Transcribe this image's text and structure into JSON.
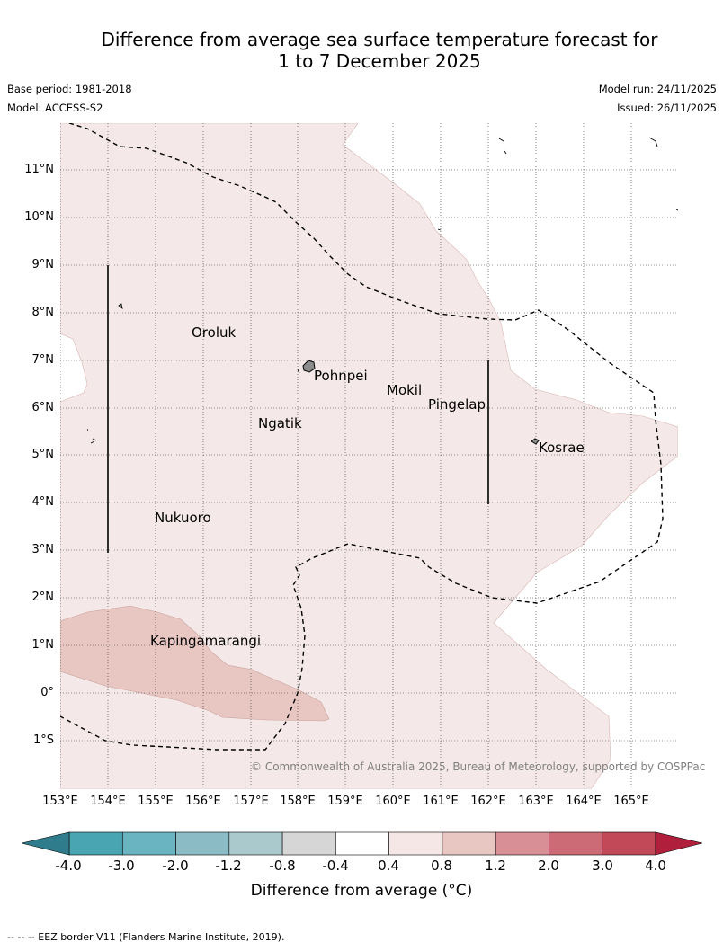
{
  "title_line1": "Difference from average sea surface temperature forecast for",
  "title_line2": "1 to 7 December 2025",
  "base_period": "Base period: 1981-2018",
  "model": "Model: ACCESS-S2",
  "model_run": "Model run: 24/11/2025",
  "issued": "Issued: 26/11/2025",
  "lat_labels": [
    "11°N",
    "10°N",
    "9°N",
    "8°N",
    "7°N",
    "6°N",
    "5°N",
    "4°N",
    "3°N",
    "2°N",
    "1°N",
    "0°",
    "1°S"
  ],
  "lon_labels": [
    "153°E",
    "154°E",
    "155°E",
    "156°E",
    "157°E",
    "158°E",
    "159°E",
    "160°E",
    "161°E",
    "162°E",
    "163°E",
    "164°E",
    "165°E"
  ],
  "islands": {
    "oroluk": "Oroluk",
    "pohnpei": "Pohnpei",
    "mokil": "Mokil",
    "pingelap": "Pingelap",
    "ngatik": "Ngatik",
    "kosrae": "Kosrae",
    "nukuoro": "Nukuoro",
    "kapingamarangi": "Kapingamarangi"
  },
  "copyright": "© Commonwealth of Australia 2025, Bureau of Meteorology, supported by COSPPac",
  "colorbar": {
    "ticks": [
      "-4.0",
      "-3.0",
      "-2.0",
      "-1.2",
      "-0.8",
      "-0.4",
      "0.4",
      "0.8",
      "1.2",
      "2.0",
      "3.0",
      "4.0"
    ],
    "colors": [
      "#4aa5b3",
      "#6ab3c0",
      "#8bbcc6",
      "#a9c9cc",
      "#d6d6d6",
      "#ffffff",
      "#f4e7e6",
      "#e8c6c2",
      "#d88f96",
      "#cc6b76",
      "#c24a58"
    ],
    "under_color": "#2e7c8c",
    "over_color": "#b01f3c",
    "label": "Difference from average (°C)"
  },
  "footnote": "--  --  -- EEZ border V11 (Flanders Marine Institute, 2019)."
}
